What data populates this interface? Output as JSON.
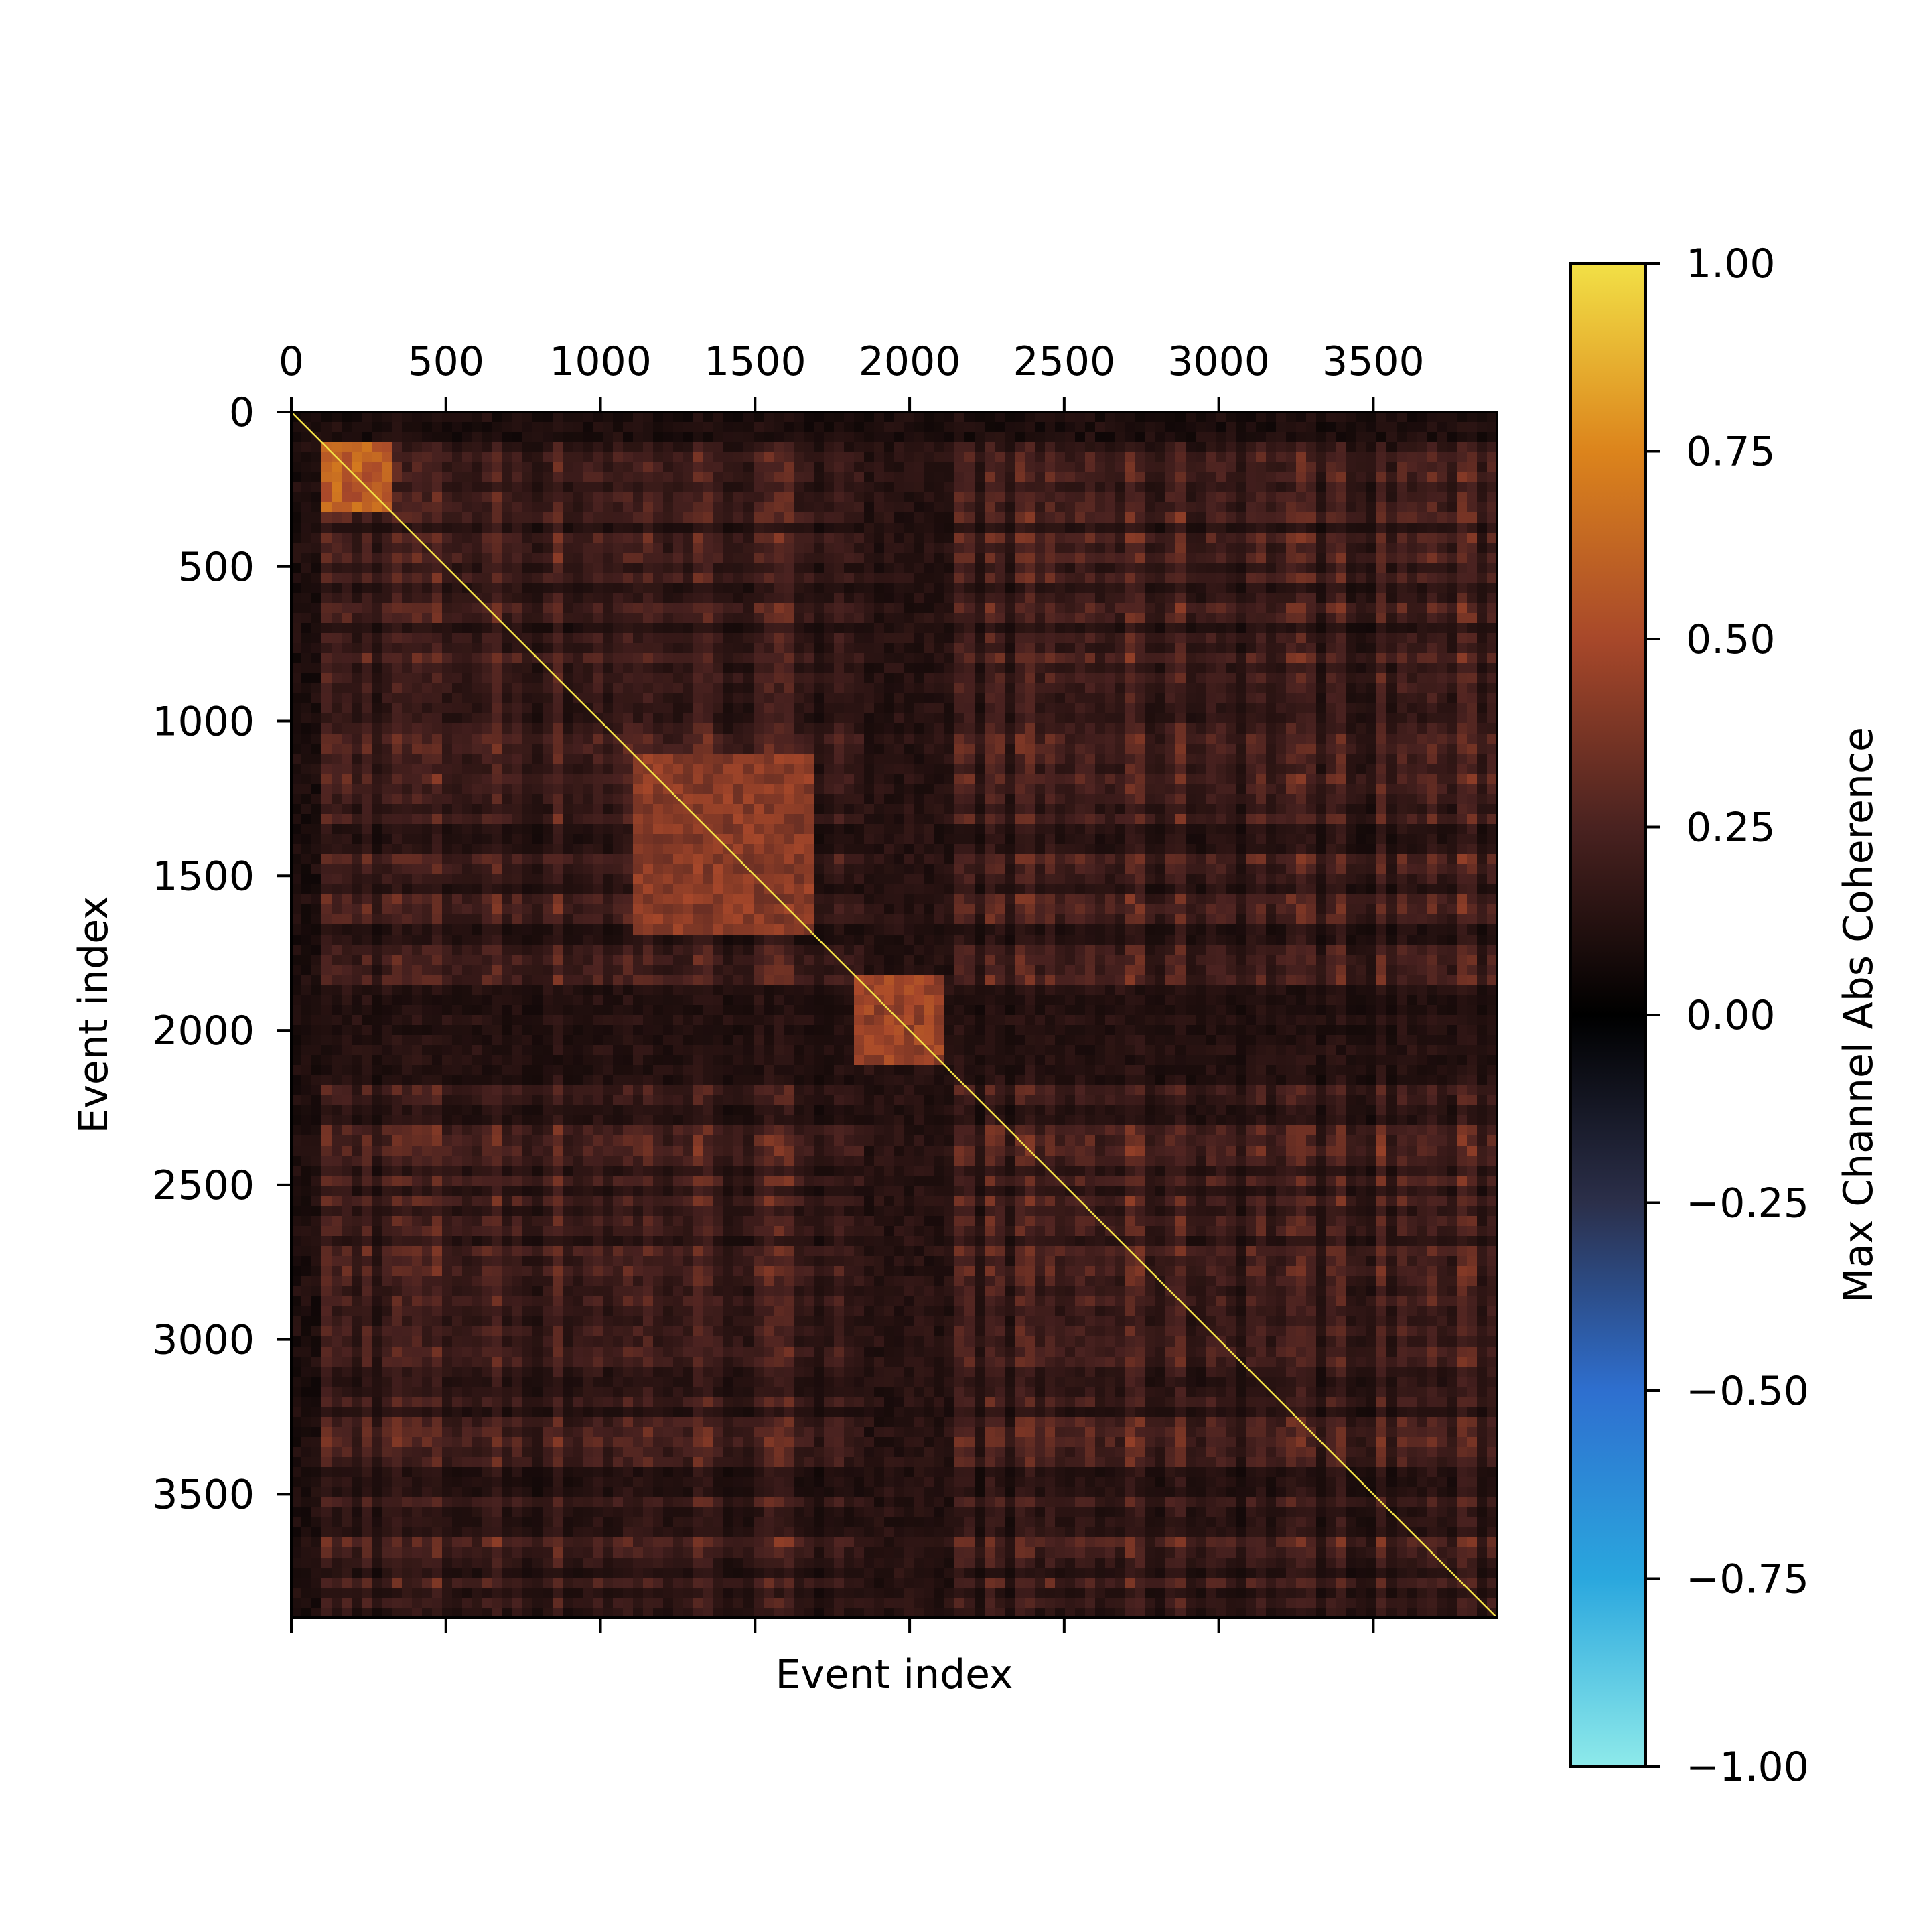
{
  "chart_data": {
    "type": "heatmap",
    "title": "",
    "xlabel": "Event index",
    "ylabel": "Event index",
    "x_ticks_top": [
      "0",
      "500",
      "1000",
      "1500",
      "2000",
      "2500",
      "3000",
      "3500"
    ],
    "y_ticks": [
      "0",
      "500",
      "1000",
      "1500",
      "2000",
      "2500",
      "3000",
      "3500"
    ],
    "tick_values": [
      0,
      500,
      1000,
      1500,
      2000,
      2500,
      3000,
      3500
    ],
    "n_events": 3900,
    "xlim": [
      0,
      3900
    ],
    "ylim": [
      3900,
      0
    ],
    "colorbar": {
      "label": "Max Channel Abs Coherence",
      "range": [
        -1.0,
        1.0
      ],
      "tick_values": [
        1.0,
        0.75,
        0.5,
        0.25,
        0.0,
        -0.25,
        -0.5,
        -0.75,
        -1.0
      ],
      "tick_labels": [
        "1.00",
        "0.75",
        "0.50",
        "0.25",
        "0.00",
        "−0.25",
        "−0.50",
        "−0.75",
        "−1.00"
      ],
      "colormap_stops": [
        {
          "v": -1.0,
          "color": "#8eeaea"
        },
        {
          "v": -0.75,
          "color": "#2aa7de"
        },
        {
          "v": -0.5,
          "color": "#2e6fcf"
        },
        {
          "v": -0.25,
          "color": "#2b2f4a"
        },
        {
          "v": 0.0,
          "color": "#000000"
        },
        {
          "v": 0.25,
          "color": "#4a2220"
        },
        {
          "v": 0.5,
          "color": "#a8482a"
        },
        {
          "v": 0.75,
          "color": "#dc841c"
        },
        {
          "v": 1.0,
          "color": "#f2e046"
        }
      ]
    },
    "diagonal_value": 1.0,
    "typical_value_range": [
      0.0,
      0.45
    ],
    "notable_blocks": [
      {
        "rows": [
          110,
          320
        ],
        "cols": [
          110,
          320
        ],
        "value": 0.65
      },
      {
        "rows": [
          1100,
          1700
        ],
        "cols": [
          1100,
          1700
        ],
        "value": 0.45
      },
      {
        "rows": [
          1820,
          2100
        ],
        "cols": [
          1820,
          2100
        ],
        "value": 0.5
      }
    ],
    "low_bands": [
      {
        "range": [
          0,
          110
        ],
        "value": 0.05
      },
      {
        "range": [
          1850,
          2150
        ],
        "value": 0.08
      }
    ]
  }
}
